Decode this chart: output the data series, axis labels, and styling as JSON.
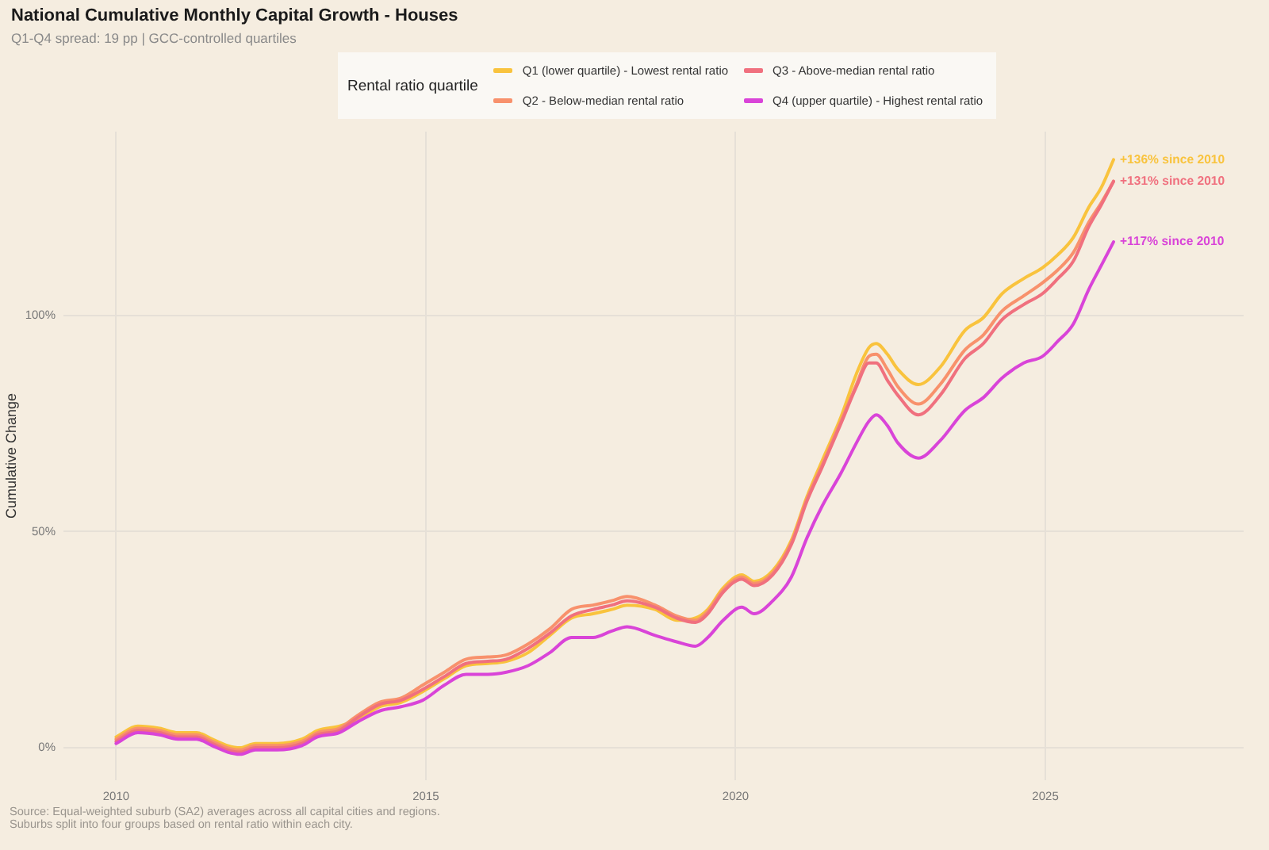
{
  "chart_data": {
    "type": "line",
    "title": "National Cumulative Monthly Capital Growth - Houses",
    "subtitle": "Q1-Q4 spread: 19 pp | GCC-controlled quartiles",
    "ylabel": "Cumulative Change",
    "legend_title": "Rental ratio quartile",
    "legend": "top",
    "grid": true,
    "x": [
      2010.0,
      2010.35,
      2010.7,
      2011.0,
      2011.3,
      2011.55,
      2011.8,
      2012.0,
      2012.25,
      2012.6,
      2013.0,
      2013.25,
      2013.6,
      2013.9,
      2014.25,
      2014.6,
      2014.95,
      2015.3,
      2015.65,
      2016.0,
      2016.3,
      2016.65,
      2017.0,
      2017.35,
      2017.7,
      2018.0,
      2018.25,
      2018.7,
      2019.05,
      2019.35,
      2019.55,
      2019.8,
      2020.1,
      2020.3,
      2020.6,
      2020.9,
      2021.15,
      2021.4,
      2021.7,
      2021.95,
      2022.15,
      2022.27,
      2022.45,
      2022.62,
      2022.95,
      2023.3,
      2023.7,
      2024.0,
      2024.3,
      2024.65,
      2024.95,
      2025.2,
      2025.45,
      2025.7,
      2025.9,
      2026.1
    ],
    "series": [
      {
        "name": "Q1 (lower quartile) - Lowest rental ratio",
        "color": "#f9c33d",
        "values": [
          2.5,
          5,
          4.5,
          3.5,
          3.5,
          2,
          0.5,
          0,
          1,
          1,
          2,
          4,
          5,
          6.5,
          9.5,
          10.5,
          13,
          16,
          19,
          19.5,
          20,
          22,
          26,
          30,
          31,
          32,
          33,
          32,
          29.5,
          30,
          32,
          37,
          40,
          38.5,
          41,
          48,
          58,
          66.5,
          76.5,
          86.5,
          92.5,
          93.5,
          91,
          87.5,
          84,
          88,
          96.5,
          99.5,
          105,
          108.5,
          111,
          114,
          118,
          125,
          129.5,
          136
        ],
        "value_labels": [
          null,
          null,
          null,
          null,
          null,
          null,
          null,
          null,
          null,
          null,
          null,
          null,
          null,
          null,
          null,
          null,
          null,
          null,
          null,
          null,
          null,
          null,
          null,
          null,
          null,
          null,
          null,
          null,
          null,
          null,
          null,
          null,
          null,
          null,
          null,
          null,
          null,
          null,
          null,
          null,
          null,
          null,
          null,
          null,
          null,
          null,
          null,
          null,
          null,
          null,
          null,
          null,
          null,
          null,
          null,
          "+136% since 2010"
        ]
      },
      {
        "name": "Q2 - Below-median rental ratio",
        "color": "#f8916c",
        "values": [
          2,
          4.5,
          4,
          3,
          3,
          1.5,
          0,
          -0.5,
          0.5,
          0.5,
          1.5,
          3.5,
          4.5,
          7.5,
          10.5,
          11.5,
          14.5,
          17.5,
          20.5,
          21,
          21.5,
          24,
          27.5,
          32,
          33,
          34,
          35,
          33,
          30.5,
          29.5,
          31.5,
          36.5,
          39.5,
          38,
          40.5,
          47.5,
          57.5,
          65.5,
          75.5,
          84,
          90.5,
          91,
          87.5,
          83.5,
          79.5,
          84,
          92,
          95.5,
          101,
          104.5,
          107.5,
          110.5,
          114.5,
          121.5,
          126,
          131
        ]
      },
      {
        "name": "Q3 - Above-median rental ratio",
        "color": "#f0707e",
        "values": [
          1.5,
          4,
          3.5,
          2.5,
          2.5,
          1,
          -0.5,
          -1,
          0,
          0,
          1,
          3,
          4,
          7,
          10,
          11,
          13.5,
          16.5,
          19.5,
          20,
          20.5,
          23,
          26.5,
          30.5,
          32,
          33,
          34,
          32.5,
          30,
          29,
          31,
          36,
          39,
          37.5,
          40,
          47,
          57,
          65,
          75,
          83.5,
          89,
          89,
          85,
          81.5,
          77,
          81.5,
          90,
          93.5,
          99,
          102.5,
          105,
          108.5,
          112.5,
          120.5,
          125.5,
          131
        ],
        "value_labels": [
          null,
          null,
          null,
          null,
          null,
          null,
          null,
          null,
          null,
          null,
          null,
          null,
          null,
          null,
          null,
          null,
          null,
          null,
          null,
          null,
          null,
          null,
          null,
          null,
          null,
          null,
          null,
          null,
          null,
          null,
          null,
          null,
          null,
          null,
          null,
          null,
          null,
          null,
          null,
          null,
          null,
          null,
          null,
          null,
          null,
          null,
          null,
          null,
          null,
          null,
          null,
          null,
          null,
          null,
          null,
          "+131% since 2010"
        ]
      },
      {
        "name": "Q4 (upper quartile) - Highest rental ratio",
        "color": "#d944d8",
        "values": [
          1,
          3.5,
          3,
          2,
          2,
          0.5,
          -1,
          -1.5,
          -0.5,
          -0.5,
          0.5,
          2.5,
          3.5,
          6,
          8.5,
          9.5,
          11,
          14.5,
          17,
          17,
          17.5,
          19,
          22,
          25.5,
          25.5,
          27,
          28,
          26,
          24.5,
          23.5,
          25.5,
          29.5,
          32.5,
          31,
          34,
          39.5,
          48.5,
          56,
          63.5,
          70.5,
          75.5,
          77,
          74.5,
          70.5,
          67,
          71,
          78,
          81,
          85.5,
          89,
          90.5,
          94,
          98,
          106,
          111.5,
          117
        ],
        "value_labels": [
          null,
          null,
          null,
          null,
          null,
          null,
          null,
          null,
          null,
          null,
          null,
          null,
          null,
          null,
          null,
          null,
          null,
          null,
          null,
          null,
          null,
          null,
          null,
          null,
          null,
          null,
          null,
          null,
          null,
          null,
          null,
          null,
          null,
          null,
          null,
          null,
          null,
          null,
          null,
          null,
          null,
          null,
          null,
          null,
          null,
          null,
          null,
          null,
          null,
          null,
          null,
          null,
          null,
          null,
          null,
          "+117% since 2010"
        ]
      }
    ],
    "xlim": [
      2009.15,
      2028.2
    ],
    "xticks": [
      2010,
      2015,
      2020,
      2025
    ],
    "ylim": [
      -7.5,
      142.5
    ],
    "yticks": [
      {
        "value": 0,
        "label": "0%"
      },
      {
        "value": 50,
        "label": "50%"
      },
      {
        "value": 100,
        "label": "100%"
      }
    ],
    "annotations": [
      "Source: Equal-weighted suburb (SA2) averages across all capital cities and regions.",
      "Suburbs split into four groups based on rental ratio within each city."
    ]
  }
}
